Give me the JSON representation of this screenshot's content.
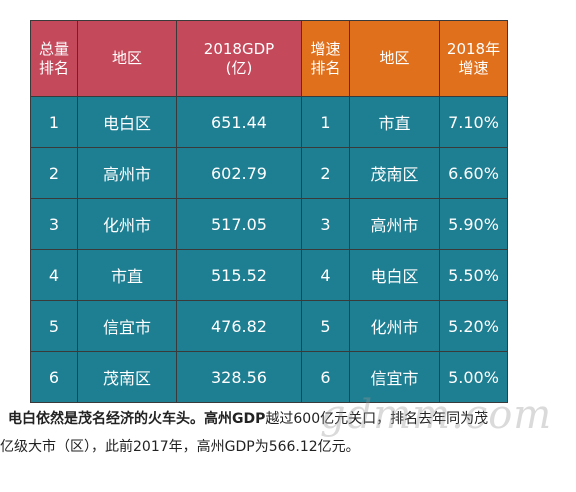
{
  "table": {
    "header": {
      "gdp_rank": "总量\n排名",
      "region_a": "地区",
      "gdp": "2018GDP\n(亿)",
      "growth_rank": "增速\n排名",
      "region_b": "地区",
      "growth": "2018年\n增速"
    },
    "rows": [
      {
        "gdp_rank": "1",
        "region_a": "电白区",
        "gdp": "651.44",
        "growth_rank": "1",
        "region_b": "市直",
        "growth": "7.10%"
      },
      {
        "gdp_rank": "2",
        "region_a": "高州市",
        "gdp": "602.79",
        "growth_rank": "2",
        "region_b": "茂南区",
        "growth": "6.60%"
      },
      {
        "gdp_rank": "3",
        "region_a": "化州市",
        "gdp": "517.05",
        "growth_rank": "3",
        "region_b": "高州市",
        "growth": "5.90%"
      },
      {
        "gdp_rank": "4",
        "region_a": "市直",
        "gdp": "515.52",
        "growth_rank": "4",
        "region_b": "电白区",
        "growth": "5.50%"
      },
      {
        "gdp_rank": "5",
        "region_a": "信宜市",
        "gdp": "476.82",
        "growth_rank": "5",
        "region_b": "化州市",
        "growth": "5.20%"
      },
      {
        "gdp_rank": "6",
        "region_a": "茂南区",
        "gdp": "328.56",
        "growth_rank": "6",
        "region_b": "信宜市",
        "growth": "5.00%"
      }
    ],
    "colors": {
      "header_red": "#c4495b",
      "header_orange": "#e0701c",
      "body_teal": "#1e7e92"
    }
  },
  "caption": {
    "line1_bold": "电白依然是茂名经济的火车头。高州GDP",
    "line1_rest": "越过600亿元关口，排名去年同为茂",
    "line2": "亿级大市（区），此前2017年，高州GDP为566.12亿元。"
  },
  "watermark": "gdmm.com"
}
